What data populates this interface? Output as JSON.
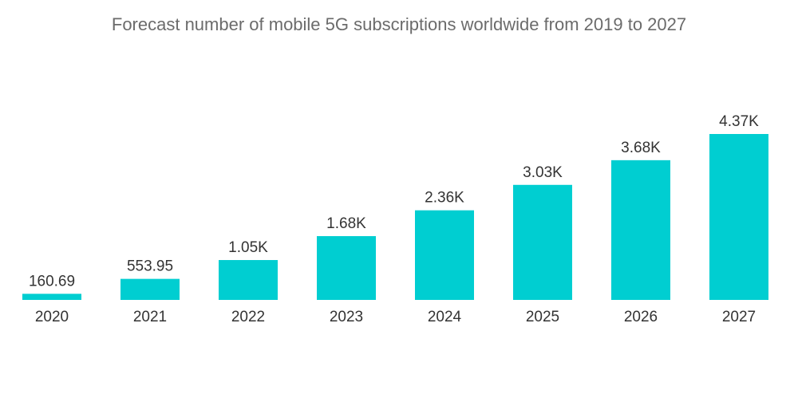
{
  "chart_data": {
    "type": "bar",
    "title": "Forecast number of mobile 5G subscriptions worldwide from 2019 to 2027",
    "xlabel": "",
    "ylabel": "",
    "categories": [
      "2020",
      "2021",
      "2022",
      "2023",
      "2024",
      "2025",
      "2026",
      "2027"
    ],
    "values": [
      160.69,
      553.95,
      1050,
      1680,
      2360,
      3030,
      3680,
      4370
    ],
    "value_labels": [
      "160.69",
      "553.95",
      "1.05K",
      "1.68K",
      "2.36K",
      "3.03K",
      "3.68K",
      "4.37K"
    ],
    "ylim": [
      0,
      4370
    ],
    "grid": false,
    "bar_color": "#00CED1"
  }
}
